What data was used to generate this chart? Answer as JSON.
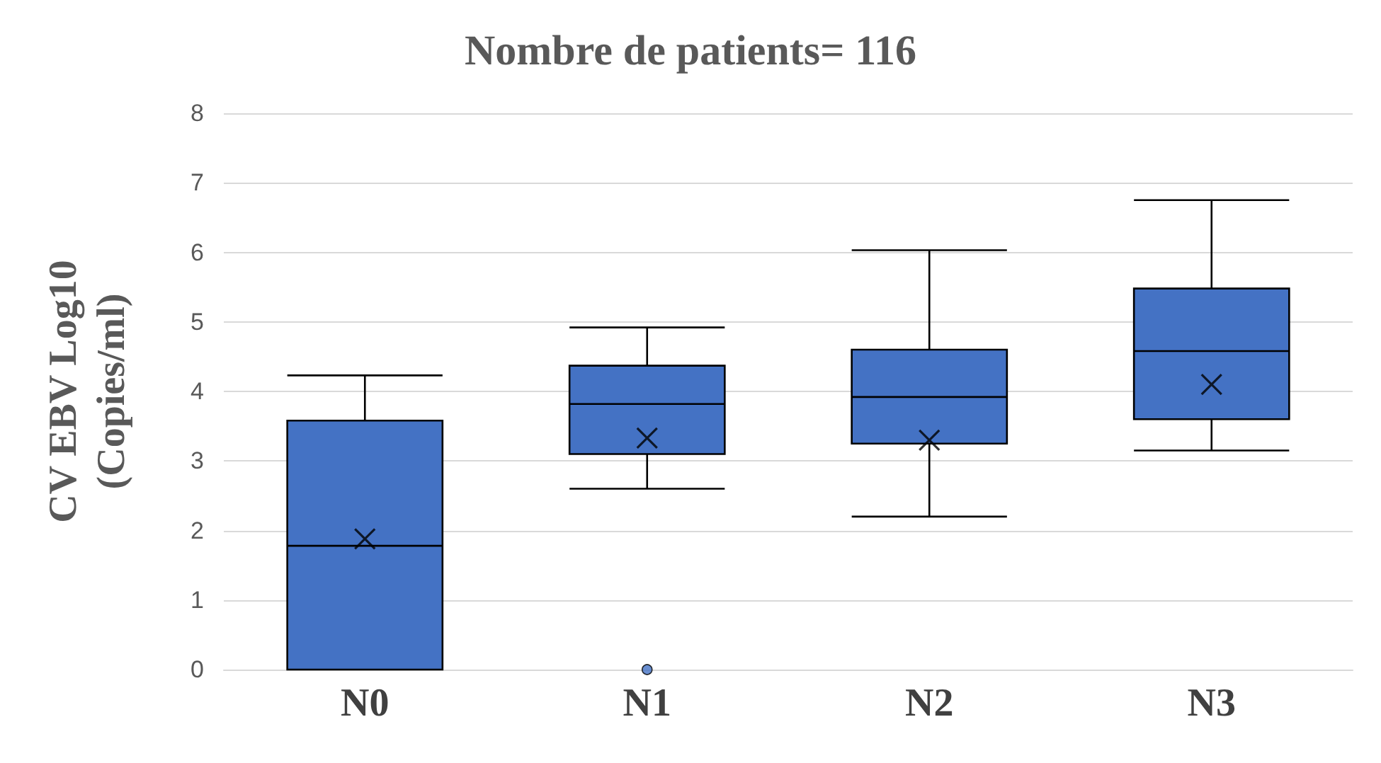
{
  "chart_data": {
    "type": "box",
    "title": "Nombre de patients= 116",
    "ylabel": "CV EBV Log10\n(Copies/ml)",
    "categories": [
      "N0",
      "N1",
      "N2",
      "N3"
    ],
    "series": [
      {
        "color": "#4472c4",
        "boxes": [
          {
            "low": 0,
            "q1": 0,
            "median": 1.78,
            "q3": 3.58,
            "high": 4.23,
            "mean": 1.88
          },
          {
            "low": 2.6,
            "q1": 3.1,
            "median": 3.82,
            "q3": 4.37,
            "high": 4.92,
            "mean": 3.33,
            "outliers": [
              0
            ]
          },
          {
            "low": 2.2,
            "q1": 3.25,
            "median": 3.92,
            "q3": 4.6,
            "high": 6.03,
            "mean": 3.3
          },
          {
            "low": 3.15,
            "q1": 3.6,
            "median": 4.58,
            "q3": 5.48,
            "high": 6.75,
            "mean": 4.1
          }
        ]
      }
    ],
    "ylim": [
      0,
      8
    ],
    "yticks": [
      0,
      1,
      2,
      3,
      4,
      5,
      6,
      7,
      8
    ],
    "grid": "y"
  }
}
